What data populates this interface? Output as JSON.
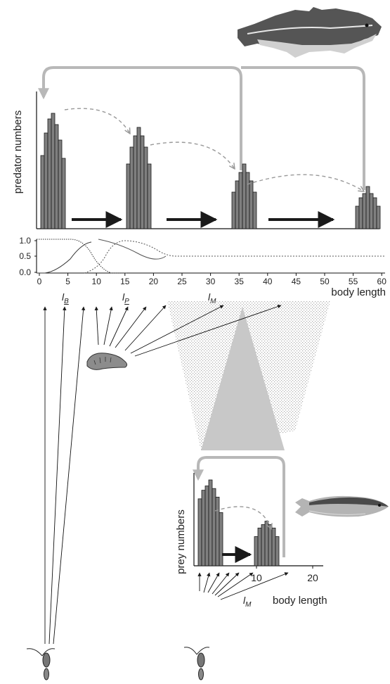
{
  "predator_panel": {
    "ylabel": "predator numbers",
    "groups": [
      {
        "values": [
          0.52,
          0.68,
          0.78,
          0.82,
          0.74,
          0.63,
          0.5
        ]
      },
      {
        "values": [
          0.46,
          0.58,
          0.66,
          0.72,
          0.66,
          0.58,
          0.46
        ]
      },
      {
        "values": [
          0.26,
          0.34,
          0.4,
          0.46,
          0.4,
          0.34,
          0.26
        ]
      },
      {
        "values": [
          0.16,
          0.22,
          0.25,
          0.3,
          0.25,
          0.22,
          0.16
        ]
      }
    ]
  },
  "switch_panel": {
    "yticks": [
      "1.0",
      "0.5",
      "0.0"
    ],
    "xticks": [
      "0",
      "5",
      "10",
      "15",
      "20",
      "25",
      "30",
      "35",
      "40",
      "45",
      "50",
      "55",
      "60"
    ],
    "xlabel": "body length",
    "markers": [
      {
        "symbol": "l",
        "sub": "B"
      },
      {
        "symbol": "l",
        "sub": "P"
      },
      {
        "symbol": "l",
        "sub": "M"
      }
    ]
  },
  "prey_panel": {
    "ylabel": "prey numbers",
    "xticks": [
      "10",
      "20"
    ],
    "xlabel": "body length",
    "marker": {
      "symbol": "l",
      "sub": "M"
    },
    "groups": [
      {
        "values": [
          0.78,
          0.88,
          0.93,
          1.0,
          0.9,
          0.8,
          0.62
        ]
      },
      {
        "values": [
          0.34,
          0.44,
          0.48,
          0.52,
          0.48,
          0.44,
          0.34
        ]
      }
    ]
  },
  "icons": {
    "predator": "cod-fish-icon",
    "prey": "herring-fish-icon",
    "benthos": "worm-icon",
    "zooplankton": "copepod-icon"
  },
  "colors": {
    "bar_fill": "#7f7f7f",
    "bar_stroke": "#1a1a1a",
    "cycle_arrow": "#b8b8b8",
    "dashed_arrow": "#a8a8a8",
    "growth_arrow": "#1a1a1a",
    "cone": "#c8c8c8"
  }
}
